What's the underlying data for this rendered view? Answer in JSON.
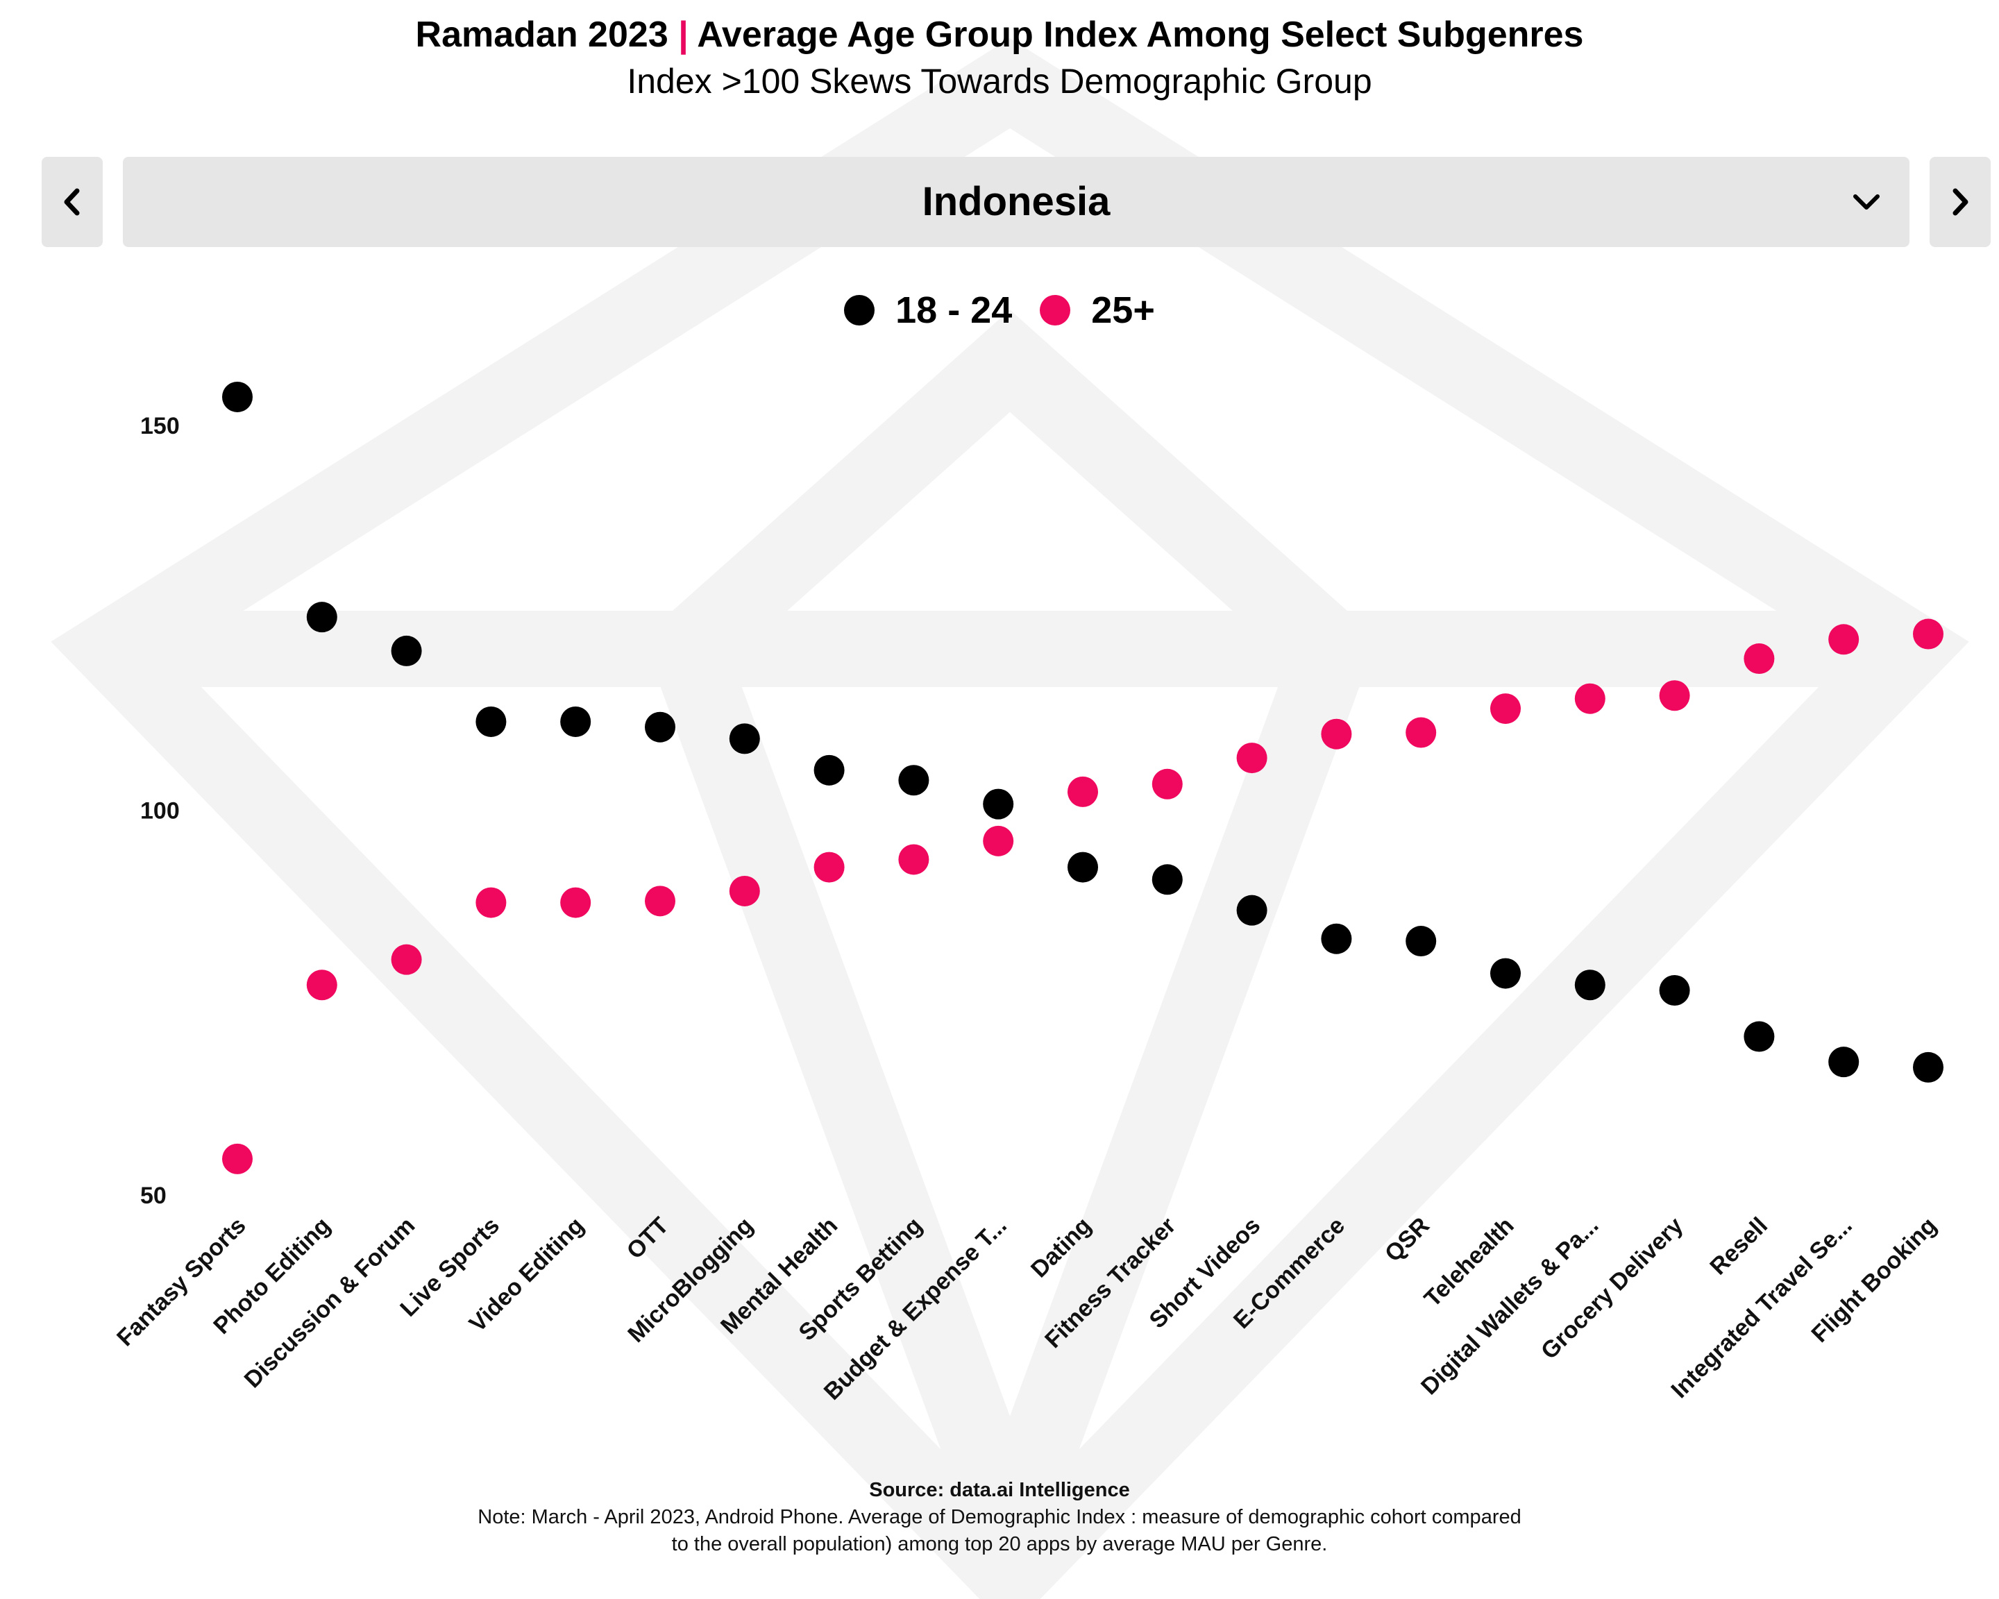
{
  "header": {
    "title_year": "Ramadan 2023",
    "title_separator": "|",
    "title_main": "Average Age Group Index Among Select Subgenres",
    "subtitle": "Index  >100 Skews Towards Demographic Group"
  },
  "selector": {
    "value": "Indonesia"
  },
  "colors": {
    "series_18_24": "#000000",
    "series_25_plus": "#f0085f",
    "accent": "#e8065f",
    "control_bg": "#e6e6e6"
  },
  "icons": {
    "prev": "chevron-left-icon",
    "next": "chevron-right-icon",
    "dropdown": "chevron-down-icon"
  },
  "chart_data": {
    "type": "scatter",
    "categories": [
      "Fantasy Sports",
      "Photo Editing",
      "Discussion & Forum",
      "Live Sports",
      "Video Editing",
      "OTT",
      "MicroBlogging",
      "Mental Health",
      "Sports Betting",
      "Budget & Expense T...",
      "Dating",
      "Fitness Tracker",
      "Short Videos",
      "E-Commerce",
      "QSR",
      "Telehealth",
      "Digital Wallets & Pa...",
      "Grocery Delivery",
      "Resell",
      "Integrated Travel Se...",
      "Flight Booking"
    ],
    "series": [
      {
        "name": "18 - 24",
        "values": [
          153.7,
          125.1,
          120.7,
          111.5,
          111.5,
          110.8,
          109.3,
          105.2,
          103.9,
          100.8,
          92.6,
          91.0,
          87.0,
          83.3,
          83.0,
          78.8,
          77.3,
          76.6,
          70.6,
          67.3,
          66.6
        ]
      },
      {
        "name": "25+",
        "values": [
          54.7,
          77.3,
          80.6,
          88.0,
          88.0,
          88.2,
          89.5,
          92.6,
          93.6,
          96.0,
          102.4,
          103.4,
          106.8,
          109.9,
          110.1,
          113.2,
          114.5,
          114.9,
          119.7,
          122.2,
          122.9
        ]
      }
    ],
    "y_ticks": [
      "150",
      "100",
      "50"
    ],
    "ylim": [
      50,
      150
    ],
    "grid": false,
    "legend_position": "top-center"
  },
  "footer": {
    "source": "Source: data.ai Intelligence",
    "note": "Note: March - April 2023, Android Phone. Average of Demographic Index  : measure of demographic cohort compared to the overall population) among top 20 apps by average MAU per Genre."
  }
}
